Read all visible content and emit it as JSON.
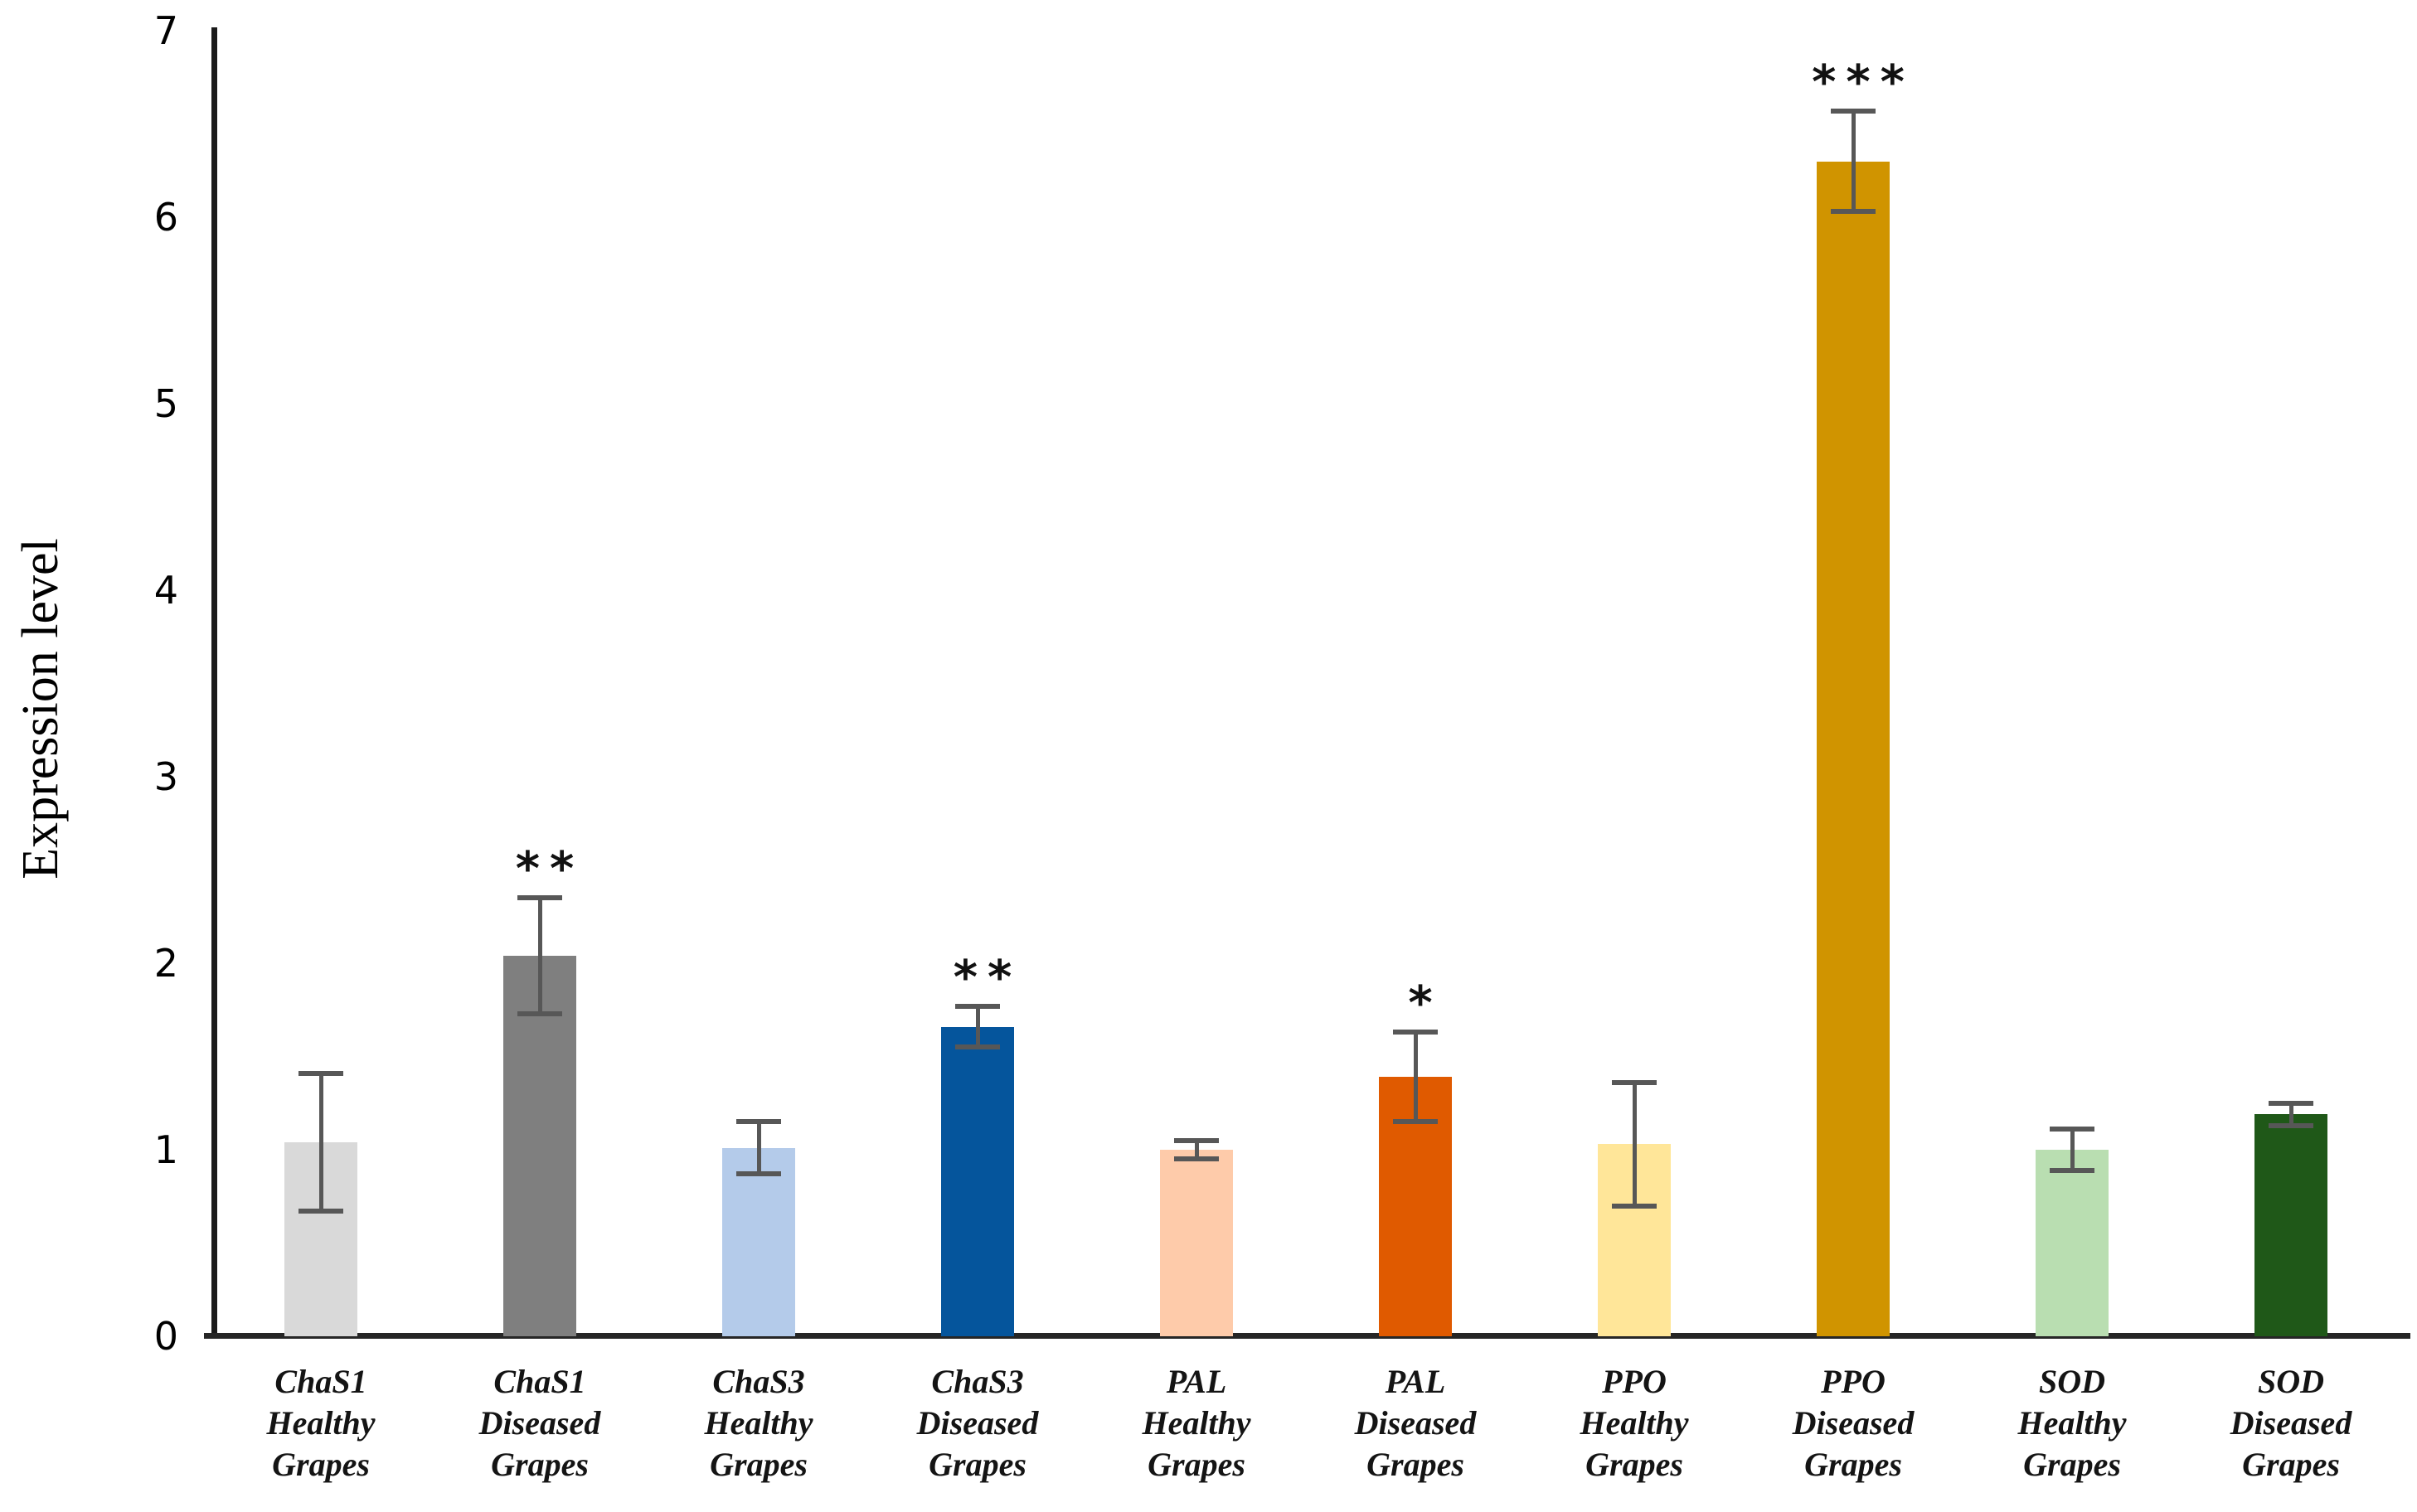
{
  "chart_data": {
    "type": "bar",
    "title": "",
    "xlabel": "",
    "ylabel": "Expression level",
    "ylim": [
      0,
      7
    ],
    "ytick_step": 1,
    "yticks": [
      0,
      1,
      2,
      3,
      4,
      5,
      6,
      7
    ],
    "grid": false,
    "legend": "none",
    "error_bar_color": "#575757",
    "categories": [
      "ChaS1 Healthy Grapes",
      "ChaS1 Diseased Grapes",
      "ChaS3 Healthy Grapes",
      "ChaS3 Diseased Grapes",
      "PAL Healthy Grapes",
      "PAL Diseased Grapes",
      "PPO Healthy Grapes",
      "PPO Diseased Grapes",
      "SOD Healthy Grapes",
      "SOD Diseased Grapes"
    ],
    "bars": [
      {
        "label_lines": [
          "ChaS1",
          "Healthy",
          "Grapes"
        ],
        "value": 1.04,
        "error": 0.37,
        "color": "#d9d9d9",
        "significance": ""
      },
      {
        "label_lines": [
          "ChaS1",
          "Diseased",
          "Grapes"
        ],
        "value": 2.04,
        "error": 0.31,
        "color": "#7f7f7f",
        "significance": "**"
      },
      {
        "label_lines": [
          "ChaS3",
          "Healthy",
          "Grapes"
        ],
        "value": 1.01,
        "error": 0.14,
        "color": "#b4cbea",
        "significance": ""
      },
      {
        "label_lines": [
          "ChaS3",
          "Diseased",
          "Grapes"
        ],
        "value": 1.66,
        "error": 0.11,
        "color": "#05559c",
        "significance": "**"
      },
      {
        "label_lines": [
          "PAL",
          "Healthy",
          "Grapes"
        ],
        "value": 1.0,
        "error": 0.05,
        "color": "#fecbaa",
        "significance": ""
      },
      {
        "label_lines": [
          "PAL",
          "Diseased",
          "Grapes"
        ],
        "value": 1.39,
        "error": 0.24,
        "color": "#e05a00",
        "significance": "*"
      },
      {
        "label_lines": [
          "PPO",
          "Healthy",
          "Grapes"
        ],
        "value": 1.03,
        "error": 0.33,
        "color": "#ffe699",
        "significance": ""
      },
      {
        "label_lines": [
          "PPO",
          "Diseased",
          "Grapes"
        ],
        "value": 6.3,
        "error": 0.27,
        "color": "#d09400",
        "significance": "***"
      },
      {
        "label_lines": [
          "SOD",
          "Healthy",
          "Grapes"
        ],
        "value": 1.0,
        "error": 0.11,
        "color": "#b9deb1",
        "significance": ""
      },
      {
        "label_lines": [
          "SOD",
          "Diseased",
          "Grapes"
        ],
        "value": 1.19,
        "error": 0.06,
        "color": "#1f5818",
        "significance": ""
      }
    ]
  }
}
